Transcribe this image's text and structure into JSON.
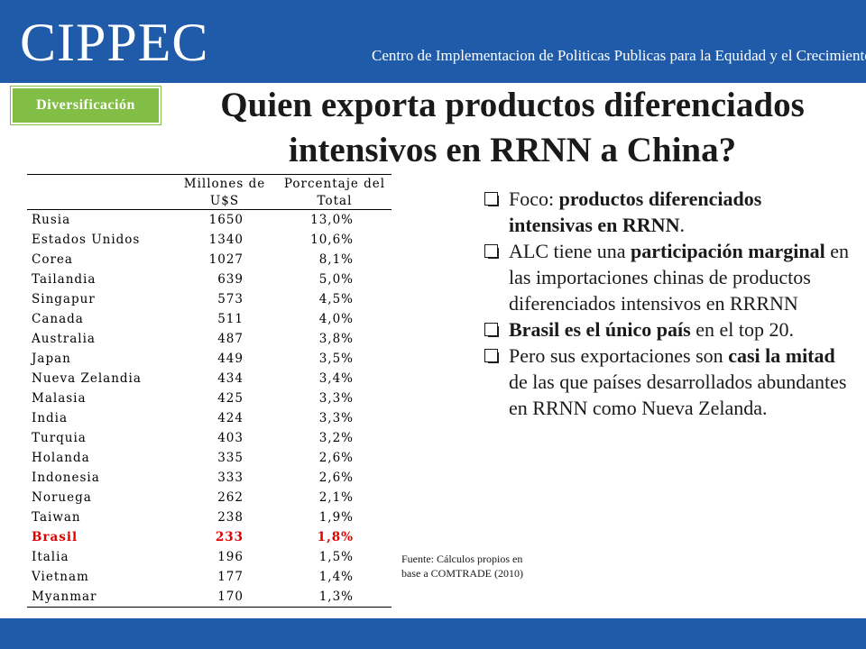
{
  "header": {
    "logo": "CIPPEC",
    "tagline": "Centro de Implementacion de Politicas Publicas para la Equidad y el Crecimiento"
  },
  "badge": "Diversificación",
  "title": "Quien exporta productos diferenciados intensivos en RRNN a China?",
  "table": {
    "col_headers": {
      "value_line1": "Millones de",
      "value_line2": "U$S",
      "pct_line1": "Porcentaje del",
      "pct_line2": "Total"
    },
    "rows": [
      {
        "country": "Rusia",
        "value": "1650",
        "pct": "13,0%",
        "highlight": false
      },
      {
        "country": "Estados Unidos",
        "value": "1340",
        "pct": "10,6%",
        "highlight": false
      },
      {
        "country": "Corea",
        "value": "1027",
        "pct": "8,1%",
        "highlight": false
      },
      {
        "country": "Tailandia",
        "value": "639",
        "pct": "5,0%",
        "highlight": false
      },
      {
        "country": "Singapur",
        "value": "573",
        "pct": "4,5%",
        "highlight": false
      },
      {
        "country": "Canada",
        "value": "511",
        "pct": "4,0%",
        "highlight": false
      },
      {
        "country": "Australia",
        "value": "487",
        "pct": "3,8%",
        "highlight": false
      },
      {
        "country": "Japan",
        "value": "449",
        "pct": "3,5%",
        "highlight": false
      },
      {
        "country": "Nueva Zelandia",
        "value": "434",
        "pct": "3,4%",
        "highlight": false
      },
      {
        "country": "Malasia",
        "value": "425",
        "pct": "3,3%",
        "highlight": false
      },
      {
        "country": "India",
        "value": "424",
        "pct": "3,3%",
        "highlight": false
      },
      {
        "country": "Turquia",
        "value": "403",
        "pct": "3,2%",
        "highlight": false
      },
      {
        "country": "Holanda",
        "value": "335",
        "pct": "2,6%",
        "highlight": false
      },
      {
        "country": "Indonesia",
        "value": "333",
        "pct": "2,6%",
        "highlight": false
      },
      {
        "country": "Noruega",
        "value": "262",
        "pct": "2,1%",
        "highlight": false
      },
      {
        "country": "Taiwan",
        "value": "238",
        "pct": "1,9%",
        "highlight": false
      },
      {
        "country": "Brasil",
        "value": "233",
        "pct": "1,8%",
        "highlight": true
      },
      {
        "country": "Italia",
        "value": "196",
        "pct": "1,5%",
        "highlight": false
      },
      {
        "country": "Vietnam",
        "value": "177",
        "pct": "1,4%",
        "highlight": false
      },
      {
        "country": "Myanmar",
        "value": "170",
        "pct": "1,3%",
        "highlight": false
      }
    ]
  },
  "bullets": [
    {
      "segments": [
        {
          "text": "Foco: ",
          "bold": false
        },
        {
          "text": "productos diferenciados intensivas en RRNN",
          "bold": true
        },
        {
          "text": ".",
          "bold": false
        }
      ]
    },
    {
      "segments": [
        {
          "text": "ALC tiene una ",
          "bold": false
        },
        {
          "text": "participación marginal",
          "bold": true
        },
        {
          "text": " en las importaciones chinas de productos diferenciados intensivos en RRRNN",
          "bold": false
        }
      ]
    },
    {
      "segments": [
        {
          "text": "Brasil es el único país",
          "bold": true
        },
        {
          "text": " en el top 20.",
          "bold": false
        }
      ]
    },
    {
      "segments": [
        {
          "text": "Pero sus exportaciones son ",
          "bold": false
        },
        {
          "text": "casi la mitad",
          "bold": true
        },
        {
          "text": " de las que países desarrollados abundantes en RRNN como Nueva Zelanda.",
          "bold": false
        }
      ]
    }
  ],
  "source": "Fuente: Cálculos propios en base a COMTRADE (2010)",
  "colors": {
    "brand_blue": "#1f5ba8",
    "badge_green": "#82bd45",
    "highlight_red": "#e00000"
  }
}
